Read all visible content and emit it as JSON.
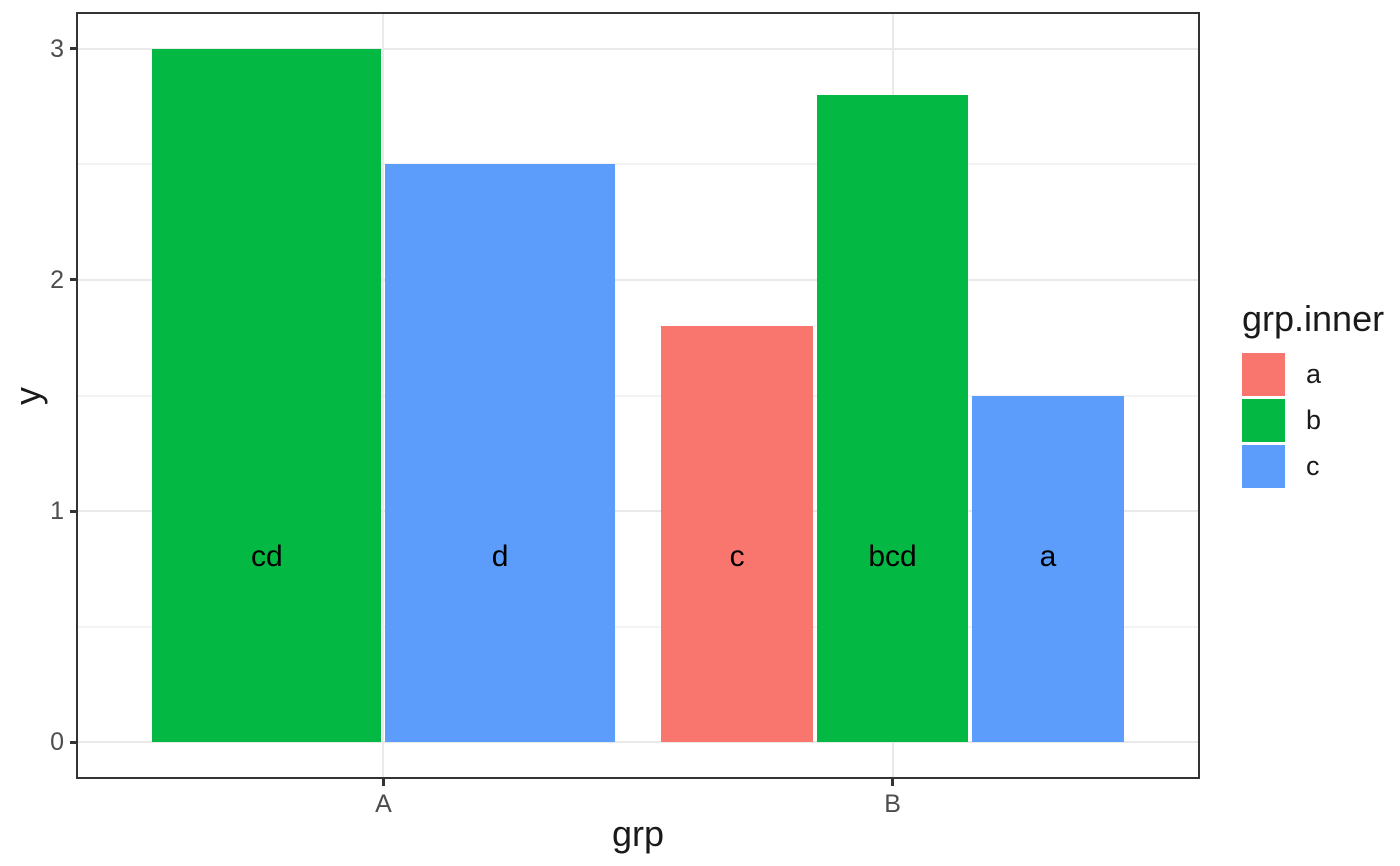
{
  "chart_data": {
    "type": "bar",
    "title": "",
    "xlabel": "grp",
    "ylabel": "y",
    "categories": [
      "A",
      "B"
    ],
    "y_ticks": [
      0,
      1,
      2,
      3
    ],
    "y_tick_labels": [
      "0",
      "1",
      "2",
      "3"
    ],
    "y_minor_gridlines": [
      0.5,
      1.5,
      2.5
    ],
    "ylim": [
      -0.15,
      3.15
    ],
    "grid": true,
    "legend_position": "right",
    "legend": {
      "title": "grp.inner",
      "entries": [
        {
          "label": "a",
          "color": "#F8766D"
        },
        {
          "label": "b",
          "color": "#03B843"
        },
        {
          "label": "c",
          "color": "#5C9DFC"
        }
      ]
    },
    "bars": [
      {
        "group": "A",
        "fill": "b",
        "value": 3.0,
        "label": "cd"
      },
      {
        "group": "A",
        "fill": "c",
        "value": 2.5,
        "label": "d"
      },
      {
        "group": "B",
        "fill": "a",
        "value": 1.8,
        "label": "c"
      },
      {
        "group": "B",
        "fill": "b",
        "value": 2.8,
        "label": "bcd"
      },
      {
        "group": "B",
        "fill": "c",
        "value": 1.5,
        "label": "a"
      }
    ],
    "bar_label_y": 0.8
  },
  "colors": {
    "panel_border": "#333333",
    "tick_mark": "#333333",
    "tick_label": "#4D4D4D",
    "axis_title": "#1A1A1A",
    "grid_major": "#E9E9E9",
    "grid_minor": "#F3F3F3",
    "bar_label_text": "#000000",
    "legend_text": "#1A1A1A",
    "background": "#FFFFFF"
  }
}
